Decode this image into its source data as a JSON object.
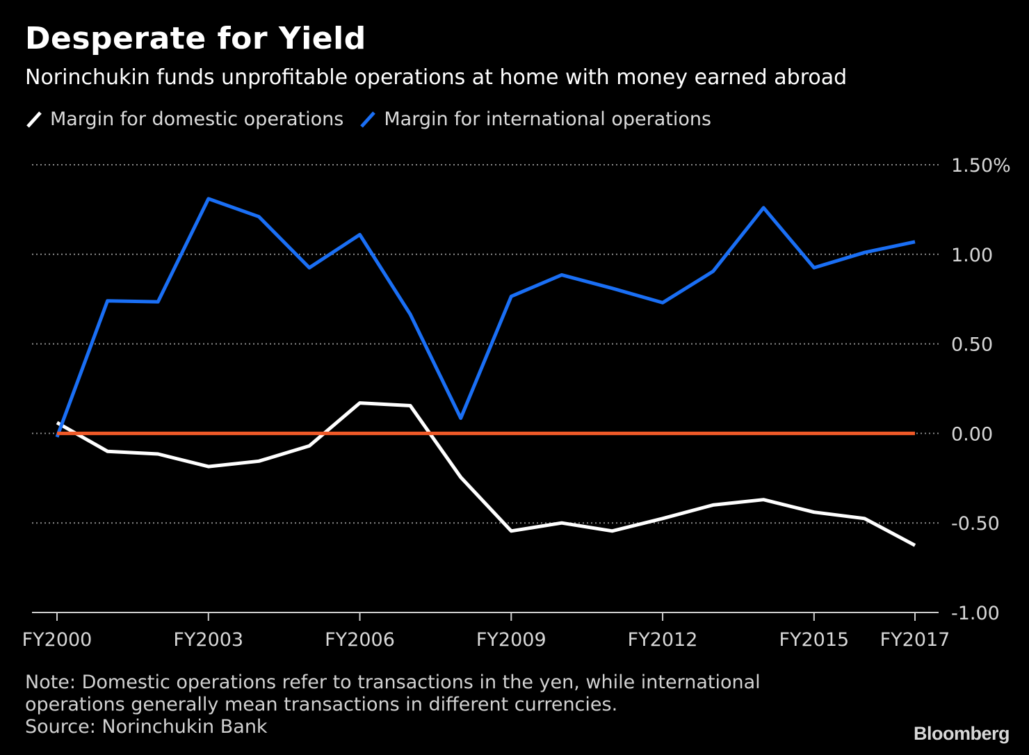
{
  "title": "Desperate for Yield",
  "subtitle": "Norinchukin funds unprofitable operations at home with money earned abroad",
  "note": {
    "line1": "Note: Domestic operations refer to transactions in the yen, while international",
    "line2": "operations generally mean transactions in different currencies.",
    "source": "Source: Norinchukin Bank"
  },
  "brand": "Bloomberg",
  "chart_data": {
    "type": "line",
    "title": "Desperate for Yield",
    "xlabel": "",
    "ylabel": "",
    "x": [
      2000,
      2001,
      2002,
      2003,
      2004,
      2005,
      2006,
      2007,
      2008,
      2009,
      2010,
      2011,
      2012,
      2013,
      2014,
      2015,
      2016,
      2017
    ],
    "ylim": [
      -1.0,
      1.5
    ],
    "yticks": [
      1.5,
      1.0,
      0.5,
      0.0,
      -0.5,
      -1.0
    ],
    "ytick_labels": [
      "1.50%",
      "1.00",
      "0.50",
      "0.00",
      "-0.50",
      "-1.00"
    ],
    "xticks": [
      2000,
      2003,
      2006,
      2009,
      2012,
      2015,
      2017
    ],
    "xtick_labels": [
      "FY2000",
      "FY2003",
      "FY2006",
      "FY2009",
      "FY2012",
      "FY2015",
      "FY2017"
    ],
    "series": [
      {
        "name": "Margin for domestic operations",
        "color": "#ffffff",
        "values": [
          0.06,
          -0.1,
          -0.115,
          -0.185,
          -0.155,
          -0.07,
          0.17,
          0.155,
          -0.245,
          -0.545,
          -0.5,
          -0.545,
          -0.475,
          -0.4,
          -0.37,
          -0.44,
          -0.475,
          -0.625
        ]
      },
      {
        "name": "Margin for international operations",
        "color": "#1a6ff5",
        "values": [
          -0.02,
          0.74,
          0.735,
          1.31,
          1.21,
          0.925,
          1.11,
          0.665,
          0.085,
          0.765,
          0.885,
          0.81,
          0.73,
          0.905,
          1.26,
          0.925,
          1.01,
          1.07
        ]
      }
    ],
    "reference_line": {
      "value": 0.0,
      "color": "#f05a28"
    }
  }
}
